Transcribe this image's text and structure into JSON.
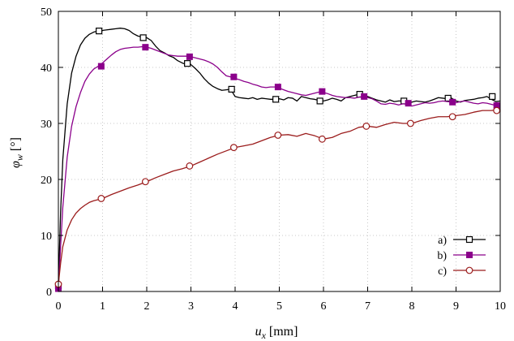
{
  "chart_data": {
    "type": "line",
    "xlabel_main": "u",
    "xlabel_sub": "x",
    "xlabel_unit": " [mm]",
    "ylabel_main": "φ",
    "ylabel_sub": "w",
    "ylabel_unit": " [°]",
    "xlim": [
      0,
      10
    ],
    "ylim": [
      0,
      50
    ],
    "xticks": [
      0,
      1,
      2,
      3,
      4,
      5,
      6,
      7,
      8,
      9,
      10
    ],
    "yticks": [
      0,
      10,
      20,
      30,
      40,
      50
    ],
    "grid": true,
    "legend_position": "bottom-right",
    "series": [
      {
        "name": "a)",
        "color": "#000000",
        "marker": "open-square",
        "x": [
          0,
          0.05,
          0.1,
          0.2,
          0.3,
          0.4,
          0.5,
          0.6,
          0.7,
          0.8,
          0.9,
          1.0,
          1.1,
          1.2,
          1.3,
          1.4,
          1.5,
          1.6,
          1.7,
          1.8,
          1.9,
          2.0,
          2.1,
          2.2,
          2.3,
          2.4,
          2.5,
          2.6,
          2.7,
          2.8,
          2.9,
          3.0,
          3.1,
          3.2,
          3.3,
          3.4,
          3.5,
          3.6,
          3.7,
          3.8,
          3.9,
          4.0,
          4.1,
          4.2,
          4.3,
          4.4,
          4.5,
          4.6,
          4.7,
          4.8,
          4.9,
          5.0,
          5.1,
          5.2,
          5.3,
          5.4,
          5.5,
          5.6,
          5.7,
          5.8,
          5.9,
          6.0,
          6.1,
          6.2,
          6.3,
          6.4,
          6.5,
          6.6,
          6.7,
          6.8,
          6.9,
          7.0,
          7.1,
          7.2,
          7.3,
          7.4,
          7.5,
          7.6,
          7.7,
          7.8,
          7.9,
          8.0,
          8.1,
          8.2,
          8.3,
          8.4,
          8.5,
          8.6,
          8.7,
          8.8,
          8.9,
          9.0,
          9.1,
          9.2,
          9.3,
          9.4,
          9.5,
          9.6,
          9.7,
          9.8,
          9.9,
          10.0
        ],
        "y": [
          1.0,
          14.0,
          23.5,
          33.5,
          39.0,
          42.0,
          44.0,
          45.2,
          45.9,
          46.3,
          46.5,
          46.6,
          46.7,
          46.8,
          46.9,
          47.0,
          46.9,
          46.6,
          46.0,
          45.6,
          45.4,
          45.3,
          44.8,
          43.8,
          43.0,
          42.6,
          42.1,
          41.8,
          41.2,
          40.8,
          40.5,
          40.5,
          39.8,
          39.0,
          38.0,
          37.2,
          36.6,
          36.2,
          35.9,
          36.0,
          36.1,
          34.8,
          34.6,
          34.5,
          34.4,
          34.6,
          34.3,
          34.5,
          34.4,
          34.3,
          34.3,
          34.4,
          34.2,
          34.6,
          34.5,
          34.0,
          34.8,
          34.6,
          34.4,
          34.3,
          34.1,
          34.0,
          34.2,
          34.5,
          34.3,
          34.0,
          34.6,
          34.8,
          35.0,
          35.2,
          35.0,
          34.8,
          34.5,
          34.2,
          34.0,
          33.8,
          34.2,
          33.9,
          34.0,
          34.0,
          33.6,
          33.8,
          34.0,
          33.9,
          33.8,
          34.0,
          34.3,
          34.6,
          34.5,
          34.4,
          34.5,
          34.0,
          33.8,
          34.1,
          34.2,
          34.3,
          34.5,
          34.6,
          34.8,
          34.3,
          33.9,
          34.0
        ],
        "marker_x": [
          0,
          0.92,
          1.92,
          2.92,
          3.92,
          4.92,
          5.92,
          6.82,
          7.82,
          8.82,
          9.82
        ],
        "marker_y": [
          1.0,
          46.5,
          45.3,
          40.7,
          36.1,
          34.3,
          34.0,
          35.2,
          34.0,
          34.5,
          34.8
        ]
      },
      {
        "name": "b)",
        "color": "#8b008b",
        "marker": "filled-square",
        "x": [
          0,
          0.05,
          0.1,
          0.2,
          0.3,
          0.4,
          0.5,
          0.6,
          0.7,
          0.8,
          0.9,
          1.0,
          1.1,
          1.2,
          1.3,
          1.4,
          1.5,
          1.6,
          1.7,
          1.8,
          1.9,
          2.0,
          2.1,
          2.2,
          2.3,
          2.4,
          2.5,
          2.6,
          2.7,
          2.8,
          2.9,
          3.0,
          3.1,
          3.2,
          3.3,
          3.4,
          3.5,
          3.6,
          3.7,
          3.8,
          3.9,
          4.0,
          4.1,
          4.2,
          4.3,
          4.4,
          4.5,
          4.6,
          4.7,
          4.8,
          4.9,
          5.0,
          5.1,
          5.2,
          5.3,
          5.4,
          5.5,
          5.6,
          5.7,
          5.8,
          5.9,
          6.0,
          6.1,
          6.2,
          6.3,
          6.4,
          6.5,
          6.6,
          6.7,
          6.8,
          6.9,
          7.0,
          7.1,
          7.2,
          7.3,
          7.4,
          7.5,
          7.6,
          7.7,
          7.8,
          7.9,
          8.0,
          8.1,
          8.2,
          8.3,
          8.4,
          8.5,
          8.6,
          8.7,
          8.8,
          8.9,
          9.0,
          9.1,
          9.2,
          9.3,
          9.4,
          9.5,
          9.6,
          9.7,
          9.8,
          9.9,
          10.0
        ],
        "y": [
          0.5,
          8.0,
          15.0,
          24.0,
          29.5,
          33.0,
          35.5,
          37.5,
          38.8,
          39.7,
          40.2,
          40.8,
          41.5,
          42.2,
          42.8,
          43.2,
          43.4,
          43.5,
          43.6,
          43.6,
          43.7,
          43.6,
          43.4,
          43.1,
          42.8,
          42.5,
          42.2,
          42.1,
          42.0,
          42.0,
          42.0,
          41.9,
          41.7,
          41.5,
          41.3,
          41.0,
          40.6,
          40.0,
          39.2,
          38.5,
          38.3,
          38.0,
          37.8,
          37.5,
          37.3,
          37.0,
          36.8,
          36.5,
          36.4,
          36.5,
          36.5,
          36.3,
          36.0,
          35.7,
          35.5,
          35.3,
          35.1,
          35.0,
          35.2,
          35.4,
          35.6,
          35.5,
          35.3,
          35.0,
          34.8,
          34.7,
          34.6,
          34.6,
          34.5,
          34.7,
          34.8,
          34.6,
          34.4,
          34.0,
          33.5,
          33.4,
          33.6,
          33.5,
          33.3,
          33.5,
          33.4,
          33.1,
          33.3,
          33.5,
          33.7,
          33.6,
          33.7,
          33.9,
          34.0,
          33.9,
          33.8,
          33.7,
          33.9,
          34.0,
          33.8,
          33.6,
          33.5,
          33.7,
          33.6,
          33.4,
          33.2,
          33.0
        ],
        "marker_x": [
          0,
          0.97,
          1.97,
          2.97,
          3.97,
          4.97,
          5.97,
          6.92,
          7.92,
          8.92,
          9.92
        ],
        "marker_y": [
          0.5,
          40.2,
          43.6,
          41.9,
          38.3,
          36.5,
          35.7,
          34.8,
          33.6,
          33.8,
          33.2
        ]
      },
      {
        "name": "c)",
        "color": "#9b1c1c",
        "marker": "open-circle",
        "x": [
          0,
          0.05,
          0.1,
          0.2,
          0.3,
          0.4,
          0.5,
          0.6,
          0.7,
          0.8,
          0.9,
          1.0,
          1.2,
          1.4,
          1.6,
          1.8,
          2.0,
          2.2,
          2.4,
          2.6,
          2.8,
          3.0,
          3.2,
          3.4,
          3.6,
          3.8,
          4.0,
          4.2,
          4.4,
          4.6,
          4.8,
          5.0,
          5.2,
          5.4,
          5.6,
          5.8,
          6.0,
          6.2,
          6.4,
          6.6,
          6.8,
          7.0,
          7.2,
          7.4,
          7.6,
          7.8,
          8.0,
          8.2,
          8.4,
          8.6,
          8.8,
          9.0,
          9.2,
          9.4,
          9.6,
          9.8,
          10.0
        ],
        "y": [
          1.3,
          5.0,
          8.0,
          11.0,
          12.8,
          14.0,
          14.8,
          15.4,
          15.9,
          16.2,
          16.4,
          16.6,
          17.3,
          17.9,
          18.5,
          19.0,
          19.6,
          20.3,
          20.9,
          21.5,
          21.9,
          22.4,
          23.1,
          23.8,
          24.5,
          25.1,
          25.7,
          26.0,
          26.3,
          26.9,
          27.5,
          27.9,
          28.0,
          27.7,
          28.2,
          27.8,
          27.2,
          27.5,
          28.2,
          28.6,
          29.3,
          29.5,
          29.3,
          29.8,
          30.2,
          30.0,
          30.0,
          30.5,
          30.9,
          31.2,
          31.2,
          31.4,
          31.6,
          32.0,
          32.3,
          32.3,
          32.5
        ],
        "marker_x": [
          0,
          0.97,
          1.97,
          2.97,
          3.97,
          4.97,
          5.97,
          6.97,
          7.97,
          8.92,
          9.92
        ],
        "marker_y": [
          1.3,
          16.6,
          19.6,
          22.4,
          25.7,
          27.9,
          27.2,
          29.5,
          30.0,
          31.2,
          32.3
        ]
      }
    ]
  }
}
